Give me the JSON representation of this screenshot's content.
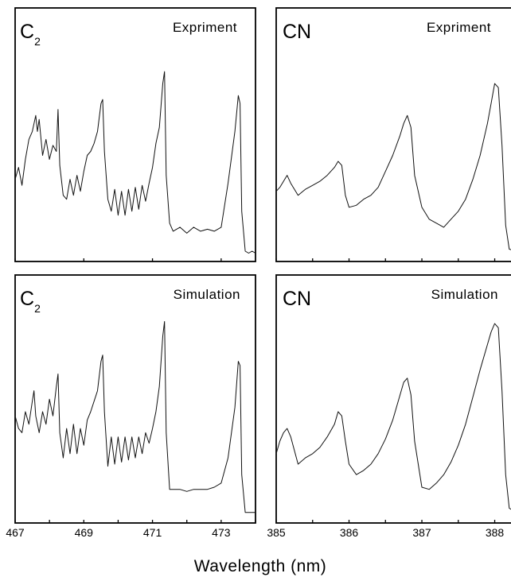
{
  "chart_data": {
    "type": "line",
    "xlabel": "Wavelength (nm)",
    "panels": [
      {
        "id": "c2-expriment",
        "species_main": "C",
        "species_sub": "2",
        "tag": "Expriment",
        "xlim": [
          467,
          474
        ],
        "ylim": [
          0,
          1
        ],
        "x_ticks": [
          467,
          469,
          471,
          473
        ],
        "x_tick_labels": [
          "467",
          "469",
          "471",
          "473"
        ],
        "series": [
          {
            "x": [
              467.0,
              467.1,
              467.2,
              467.3,
              467.4,
              467.5,
              467.6,
              467.65,
              467.7,
              467.8,
              467.9,
              468.0,
              468.1,
              468.2,
              468.25,
              468.3,
              468.4,
              468.5,
              468.6,
              468.7,
              468.8,
              468.9,
              469.0,
              469.1,
              469.2,
              469.3,
              469.4,
              469.5,
              469.55,
              469.6,
              469.7,
              469.8,
              469.9,
              470.0,
              470.1,
              470.2,
              470.3,
              470.4,
              470.5,
              470.6,
              470.7,
              470.8,
              470.9,
              471.0,
              471.1,
              471.2,
              471.3,
              471.35,
              471.4,
              471.5,
              471.6,
              471.8,
              472.0,
              472.2,
              472.4,
              472.6,
              472.8,
              473.0,
              473.2,
              473.4,
              473.5,
              473.55,
              473.6,
              473.7,
              473.8,
              473.9,
              474.0
            ],
            "y": [
              0.38,
              0.44,
              0.35,
              0.48,
              0.58,
              0.62,
              0.7,
              0.62,
              0.68,
              0.5,
              0.58,
              0.48,
              0.55,
              0.52,
              0.73,
              0.45,
              0.3,
              0.28,
              0.38,
              0.3,
              0.4,
              0.32,
              0.42,
              0.5,
              0.52,
              0.56,
              0.62,
              0.76,
              0.78,
              0.52,
              0.28,
              0.22,
              0.33,
              0.2,
              0.32,
              0.2,
              0.33,
              0.22,
              0.34,
              0.23,
              0.35,
              0.27,
              0.36,
              0.44,
              0.56,
              0.64,
              0.86,
              0.92,
              0.4,
              0.16,
              0.12,
              0.14,
              0.11,
              0.14,
              0.12,
              0.13,
              0.12,
              0.14,
              0.36,
              0.62,
              0.8,
              0.76,
              0.22,
              0.02,
              0.01,
              0.02,
              0.01
            ]
          }
        ]
      },
      {
        "id": "cn-expriment",
        "species_main": "CN",
        "species_sub": "",
        "tag": "Expriment",
        "xlim": [
          385,
          388.3
        ],
        "ylim": [
          0,
          1
        ],
        "x_ticks": [
          385,
          385.5,
          386,
          386.5,
          387,
          387.5,
          388
        ],
        "x_tick_labels": [
          "385",
          "",
          "386",
          "",
          "387",
          "",
          "388"
        ],
        "series": [
          {
            "x": [
              385.0,
              385.05,
              385.15,
              385.2,
              385.3,
              385.4,
              385.5,
              385.6,
              385.7,
              385.8,
              385.85,
              385.9,
              385.95,
              386.0,
              386.1,
              386.2,
              386.3,
              386.4,
              386.5,
              386.6,
              386.7,
              386.75,
              386.8,
              386.85,
              386.9,
              387.0,
              387.1,
              387.2,
              387.3,
              387.4,
              387.5,
              387.6,
              387.7,
              387.8,
              387.9,
              387.95,
              388.0,
              388.05,
              388.1,
              388.15,
              388.2,
              388.3
            ],
            "y": [
              0.32,
              0.34,
              0.4,
              0.36,
              0.3,
              0.33,
              0.35,
              0.37,
              0.4,
              0.44,
              0.47,
              0.45,
              0.3,
              0.24,
              0.25,
              0.28,
              0.3,
              0.34,
              0.42,
              0.5,
              0.6,
              0.66,
              0.7,
              0.64,
              0.4,
              0.24,
              0.18,
              0.16,
              0.14,
              0.18,
              0.22,
              0.28,
              0.38,
              0.5,
              0.66,
              0.76,
              0.86,
              0.84,
              0.55,
              0.15,
              0.03,
              0.02
            ]
          }
        ]
      },
      {
        "id": "c2-simulation",
        "species_main": "C",
        "species_sub": "2",
        "tag": "Simulation",
        "xlim": [
          467,
          474
        ],
        "ylim": [
          0,
          1
        ],
        "x_ticks": [
          467,
          468,
          469,
          470,
          471,
          472,
          473,
          474
        ],
        "x_tick_labels": [
          "467",
          "",
          "469",
          "",
          "471",
          "",
          "473",
          ""
        ],
        "series": [
          {
            "x": [
              467.0,
              467.1,
              467.2,
              467.3,
              467.4,
              467.5,
              467.55,
              467.6,
              467.7,
              467.8,
              467.9,
              468.0,
              468.1,
              468.2,
              468.25,
              468.3,
              468.4,
              468.5,
              468.6,
              468.7,
              468.8,
              468.9,
              469.0,
              469.1,
              469.2,
              469.3,
              469.4,
              469.5,
              469.55,
              469.6,
              469.7,
              469.8,
              469.9,
              470.0,
              470.1,
              470.2,
              470.3,
              470.4,
              470.5,
              470.6,
              470.7,
              470.8,
              470.9,
              471.0,
              471.1,
              471.2,
              471.3,
              471.35,
              471.4,
              471.5,
              471.6,
              471.8,
              472.0,
              472.2,
              472.4,
              472.6,
              472.8,
              473.0,
              473.2,
              473.4,
              473.5,
              473.55,
              473.6,
              473.7,
              473.8,
              473.9,
              474.0
            ],
            "y": [
              0.48,
              0.42,
              0.4,
              0.5,
              0.44,
              0.55,
              0.6,
              0.48,
              0.4,
              0.5,
              0.44,
              0.56,
              0.48,
              0.62,
              0.68,
              0.4,
              0.28,
              0.42,
              0.3,
              0.44,
              0.3,
              0.42,
              0.34,
              0.46,
              0.5,
              0.55,
              0.6,
              0.74,
              0.77,
              0.5,
              0.24,
              0.38,
              0.25,
              0.38,
              0.26,
              0.38,
              0.27,
              0.38,
              0.28,
              0.38,
              0.3,
              0.4,
              0.35,
              0.42,
              0.5,
              0.62,
              0.86,
              0.93,
              0.4,
              0.13,
              0.13,
              0.13,
              0.12,
              0.13,
              0.13,
              0.13,
              0.14,
              0.16,
              0.28,
              0.52,
              0.74,
              0.72,
              0.2,
              0.02,
              0.02,
              0.02,
              0.02
            ]
          }
        ]
      },
      {
        "id": "cn-simulation",
        "species_main": "CN",
        "species_sub": "",
        "tag": "Simulation",
        "xlim": [
          385,
          388.3
        ],
        "ylim": [
          0,
          1
        ],
        "x_ticks": [
          385,
          385.5,
          386,
          386.5,
          387,
          387.5,
          388
        ],
        "x_tick_labels": [
          "385",
          "",
          "386",
          "",
          "387",
          "",
          "388"
        ],
        "series": [
          {
            "x": [
              385.0,
              385.05,
              385.1,
              385.15,
              385.2,
              385.3,
              385.4,
              385.5,
              385.6,
              385.7,
              385.8,
              385.85,
              385.9,
              385.95,
              386.0,
              386.1,
              386.2,
              386.3,
              386.4,
              386.5,
              386.6,
              386.7,
              386.75,
              386.8,
              386.85,
              386.9,
              387.0,
              387.1,
              387.2,
              387.3,
              387.4,
              387.5,
              387.6,
              387.7,
              387.8,
              387.9,
              387.95,
              388.0,
              388.05,
              388.1,
              388.15,
              388.2,
              388.3
            ],
            "y": [
              0.3,
              0.36,
              0.4,
              0.42,
              0.38,
              0.25,
              0.28,
              0.3,
              0.33,
              0.38,
              0.44,
              0.5,
              0.48,
              0.36,
              0.25,
              0.2,
              0.22,
              0.25,
              0.3,
              0.37,
              0.46,
              0.58,
              0.64,
              0.66,
              0.58,
              0.36,
              0.14,
              0.13,
              0.16,
              0.2,
              0.26,
              0.34,
              0.44,
              0.57,
              0.7,
              0.82,
              0.88,
              0.92,
              0.9,
              0.6,
              0.2,
              0.04,
              0.02
            ]
          }
        ]
      }
    ]
  }
}
